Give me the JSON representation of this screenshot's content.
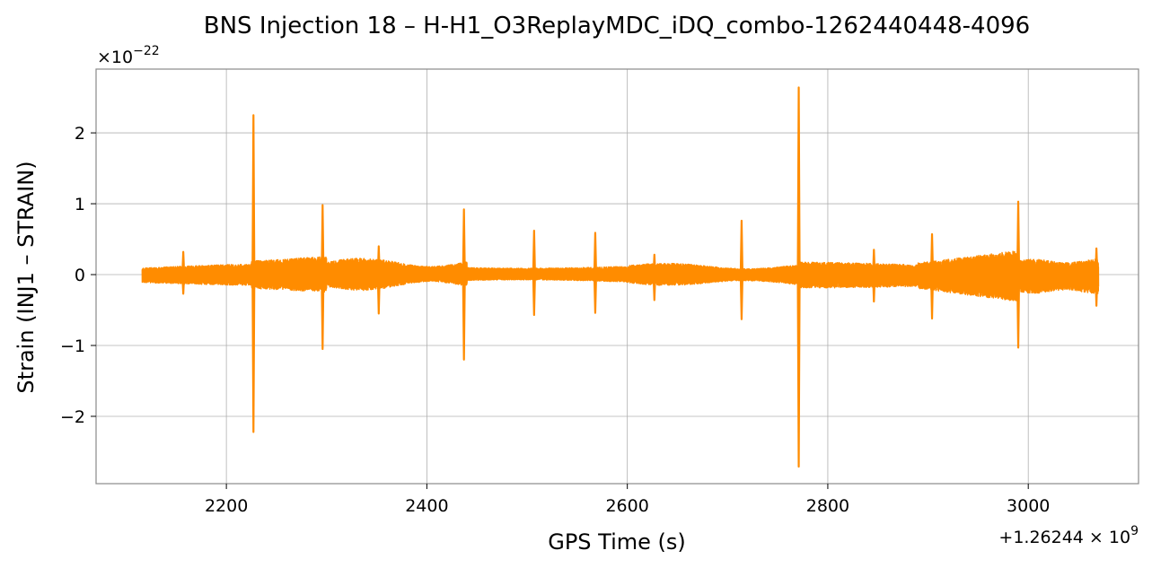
{
  "chart_data": {
    "type": "line",
    "title": "BNS Injection 18 – H-H1_O3ReplayMDC_iDQ_combo-1262440448-4096",
    "xlabel": "GPS Time (s)",
    "ylabel": "Strain (INJ1 – STRAIN)",
    "x_offset_label": "+1.26244×10^9",
    "y_scale_label": "×10^−22",
    "xlim": [
      2070,
      3110
    ],
    "ylim": [
      -2.95,
      2.9
    ],
    "x_ticks": [
      2200,
      2400,
      2600,
      2800,
      3000
    ],
    "x_tick_labels": [
      "2200",
      "2400",
      "2600",
      "2800",
      "3000"
    ],
    "y_ticks": [
      -2,
      -1,
      0,
      1,
      2
    ],
    "y_tick_labels": [
      "−2",
      "−1",
      "0",
      "1",
      "2"
    ],
    "grid": true,
    "series": [
      {
        "color": "#ff8c00",
        "x_range": [
          2116,
          3070
        ],
        "glitches": [
          {
            "x": 2157,
            "up": 0.32,
            "down": -0.27
          },
          {
            "x": 2227,
            "up": 2.25,
            "down": -2.22
          },
          {
            "x": 2296,
            "up": 0.98,
            "down": -1.05
          },
          {
            "x": 2352,
            "up": 0.4,
            "down": -0.55
          },
          {
            "x": 2437,
            "up": 0.92,
            "down": -1.2
          },
          {
            "x": 2507,
            "up": 0.62,
            "down": -0.57
          },
          {
            "x": 2568,
            "up": 0.59,
            "down": -0.54
          },
          {
            "x": 2627,
            "up": 0.28,
            "down": -0.36
          },
          {
            "x": 2714,
            "up": 0.76,
            "down": -0.63
          },
          {
            "x": 2771,
            "up": 2.64,
            "down": -2.71
          },
          {
            "x": 2846,
            "up": 0.35,
            "down": -0.38
          },
          {
            "x": 2904,
            "up": 0.57,
            "down": -0.62
          },
          {
            "x": 2990,
            "up": 1.03,
            "down": -1.03
          },
          {
            "x": 3068,
            "up": 0.37,
            "down": -0.44
          }
        ]
      }
    ]
  }
}
